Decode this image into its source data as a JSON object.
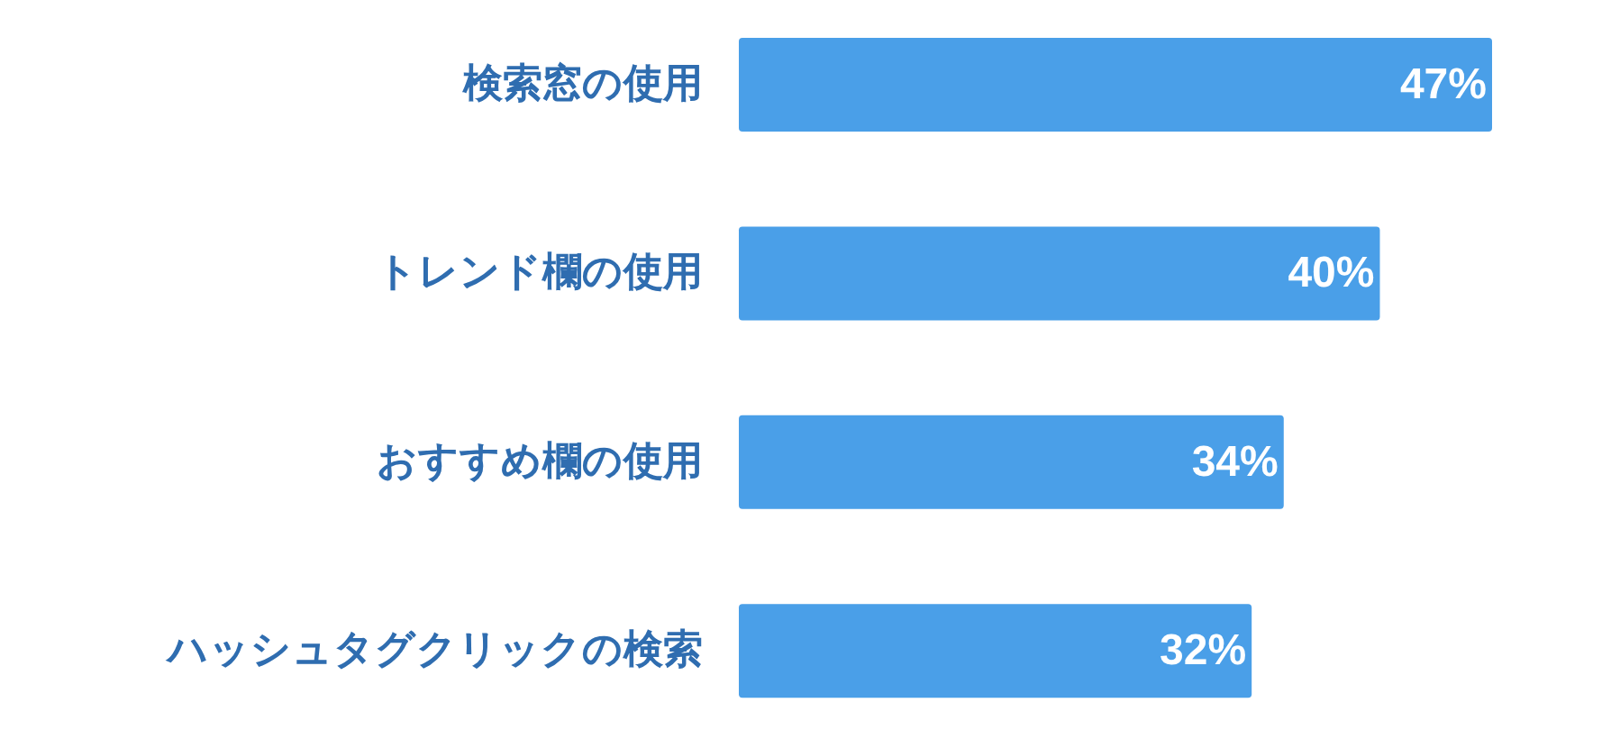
{
  "chart_data": {
    "type": "bar",
    "orientation": "horizontal",
    "categories": [
      "検索窓の使用",
      "トレンド欄の使用",
      "おすすめ欄の使用",
      "ハッシュタグクリックの検索"
    ],
    "values": [
      47,
      40,
      34,
      32
    ],
    "color": "#4a9fe8",
    "data_labels": true,
    "value_labels": [
      "47%",
      "40%",
      "34%",
      "32%"
    ]
  }
}
